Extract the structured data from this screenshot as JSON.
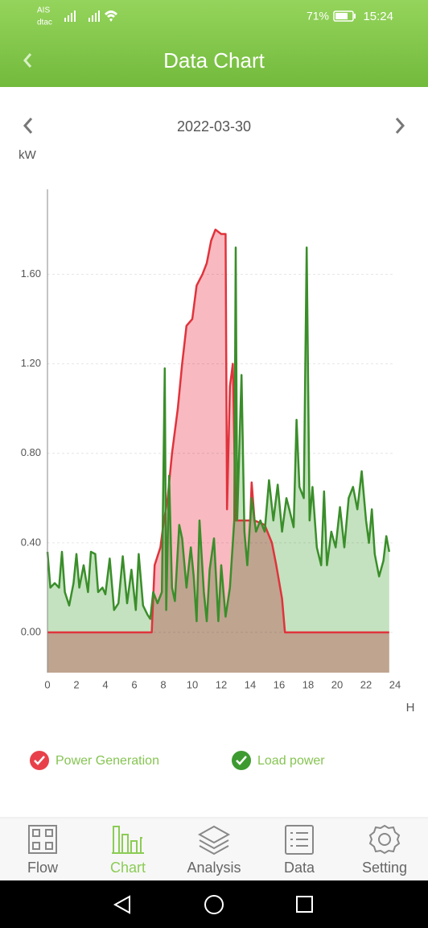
{
  "status_bar": {
    "carrier_1": "AIS",
    "carrier_2": "dtac",
    "battery": "71%",
    "time": "15:24"
  },
  "header": {
    "title": "Data Chart"
  },
  "date_nav": {
    "date": "2022-03-30"
  },
  "chart_data": {
    "type": "line",
    "ylabel": "kW",
    "xlabel": "H",
    "xlim": [
      0,
      24
    ],
    "xticks": [
      0,
      2,
      4,
      6,
      8,
      10,
      12,
      14,
      16,
      18,
      20,
      22,
      24
    ],
    "ylim": [
      -0.18,
      1.98
    ],
    "yticks": [
      {
        "value": 0,
        "label": "0.00"
      },
      {
        "value": 0.4,
        "label": "0.40"
      },
      {
        "value": 0.8,
        "label": "0.80"
      },
      {
        "value": 1.2,
        "label": "1.20"
      },
      {
        "value": 1.6,
        "label": "1.60"
      }
    ],
    "grid": true,
    "fill": true,
    "series": [
      {
        "name": "Power Generation",
        "color": "#e0333c",
        "fill_color": "#f9b9c0",
        "x": [
          0,
          7.2,
          7.4,
          7.8,
          8.0,
          8.3,
          8.6,
          9.0,
          9.3,
          9.6,
          10.0,
          10.3,
          10.7,
          11.0,
          11.3,
          11.6,
          12.0,
          12.3,
          12.4,
          12.6,
          12.8,
          13.0,
          14.0,
          14.1,
          14.3,
          15.0,
          15.5,
          15.8,
          16.2,
          16.4,
          23.6
        ],
        "values": [
          0,
          0,
          0.3,
          0.38,
          0.48,
          0.6,
          0.8,
          1.0,
          1.2,
          1.37,
          1.4,
          1.55,
          1.6,
          1.65,
          1.75,
          1.8,
          1.78,
          1.78,
          0.55,
          1.1,
          1.2,
          0.5,
          0.5,
          0.67,
          0.5,
          0.48,
          0.4,
          0.3,
          0.15,
          0,
          0
        ]
      },
      {
        "name": "Load power",
        "color": "#3a8e2a",
        "fill_color": "#c4e2bf",
        "x": [
          0,
          0.2,
          0.5,
          0.8,
          1.0,
          1.2,
          1.5,
          1.8,
          2.0,
          2.2,
          2.5,
          2.8,
          3.0,
          3.3,
          3.5,
          3.8,
          4.0,
          4.3,
          4.6,
          4.9,
          5.2,
          5.5,
          5.8,
          6.1,
          6.3,
          6.6,
          6.9,
          7.1,
          7.3,
          7.6,
          7.9,
          8.1,
          8.2,
          8.4,
          8.6,
          8.8,
          9.1,
          9.3,
          9.6,
          9.9,
          10.1,
          10.3,
          10.5,
          10.8,
          11.0,
          11.2,
          11.5,
          11.8,
          12.0,
          12.3,
          12.6,
          12.9,
          13.0,
          13.1,
          13.4,
          13.6,
          13.8,
          14.1,
          14.4,
          14.7,
          15.0,
          15.3,
          15.6,
          15.9,
          16.2,
          16.5,
          16.7,
          17.0,
          17.2,
          17.4,
          17.7,
          17.9,
          18.1,
          18.3,
          18.6,
          18.9,
          19.1,
          19.3,
          19.6,
          19.9,
          20.2,
          20.5,
          20.8,
          21.1,
          21.4,
          21.7,
          22.0,
          22.2,
          22.4,
          22.6,
          22.9,
          23.2,
          23.4,
          23.6
        ],
        "values": [
          0.36,
          0.2,
          0.22,
          0.2,
          0.36,
          0.18,
          0.12,
          0.22,
          0.35,
          0.2,
          0.3,
          0.18,
          0.36,
          0.35,
          0.18,
          0.2,
          0.17,
          0.33,
          0.1,
          0.13,
          0.34,
          0.13,
          0.28,
          0.1,
          0.35,
          0.12,
          0.08,
          0.06,
          0.18,
          0.13,
          0.18,
          1.18,
          0.1,
          0.7,
          0.2,
          0.14,
          0.48,
          0.42,
          0.2,
          0.38,
          0.25,
          0.05,
          0.5,
          0.18,
          0.05,
          0.28,
          0.42,
          0.05,
          0.3,
          0.07,
          0.2,
          0.5,
          1.72,
          0.5,
          1.15,
          0.45,
          0.3,
          0.6,
          0.45,
          0.5,
          0.45,
          0.68,
          0.5,
          0.66,
          0.45,
          0.6,
          0.55,
          0.47,
          0.95,
          0.65,
          0.6,
          1.72,
          0.5,
          0.65,
          0.38,
          0.3,
          0.63,
          0.3,
          0.45,
          0.38,
          0.56,
          0.38,
          0.6,
          0.65,
          0.55,
          0.72,
          0.5,
          0.4,
          0.55,
          0.35,
          0.25,
          0.32,
          0.43,
          0.36
        ]
      }
    ]
  },
  "tabs": [
    "Flow",
    "Chart",
    "Analysis",
    "Data",
    "Setting"
  ]
}
